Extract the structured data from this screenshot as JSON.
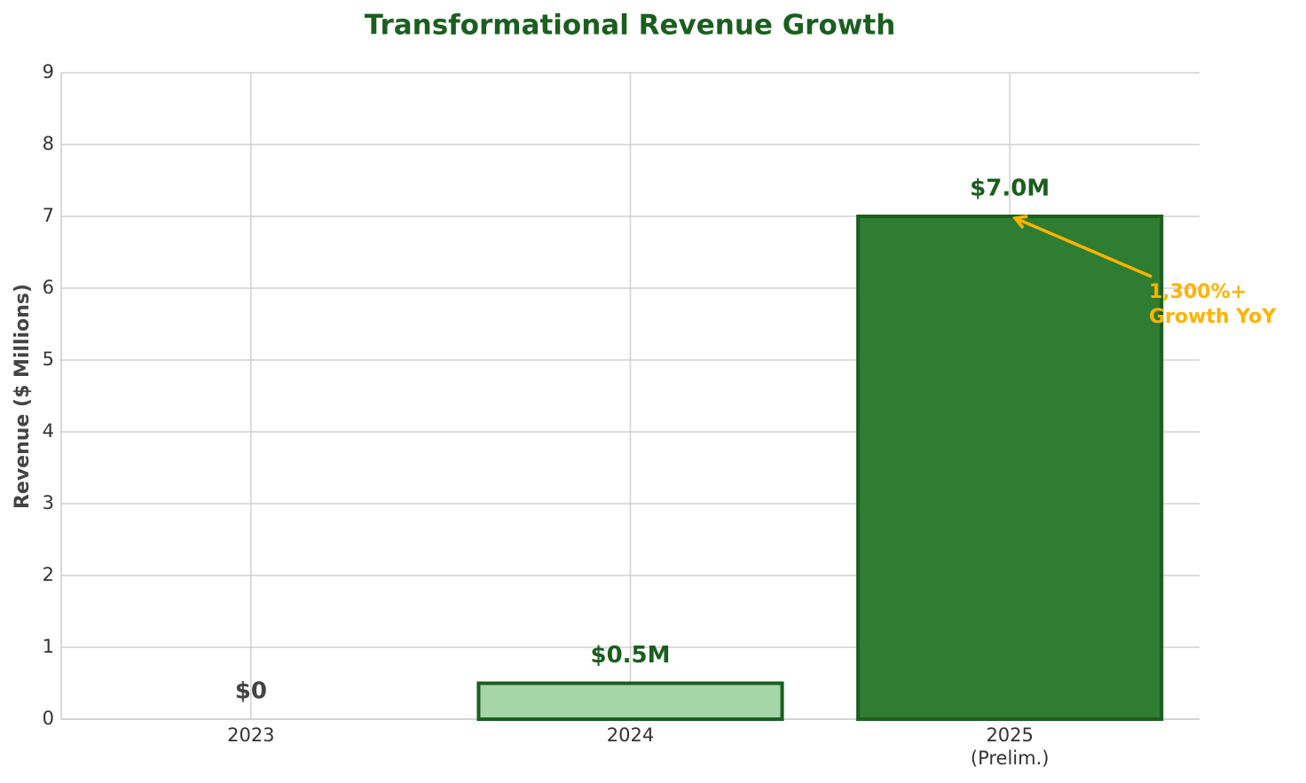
{
  "chart_data": {
    "type": "bar",
    "title": "Transformational Revenue Growth",
    "y_label": "Revenue ($ Millions)",
    "categories": [
      "2023",
      "2024",
      "2025\n(Prelim.)"
    ],
    "values": [
      0,
      0.5,
      7.0
    ],
    "value_labels": [
      "$0",
      "$0.5M",
      "$7.0M"
    ],
    "colors": [
      "#a5d6a7",
      "#a5d6a7",
      "#2e7d32"
    ],
    "edge_color": "#1b5e20",
    "value_label_colors": [
      "#444444",
      "#1b5e20",
      "#1b5e20"
    ],
    "annotation": {
      "text": "1,300%+\nGrowth YoY",
      "color": "#ffb300"
    },
    "ylim": [
      0,
      9
    ],
    "yticks": [
      0,
      1,
      2,
      3,
      4,
      5,
      6,
      7,
      8,
      9
    ],
    "grid": true
  }
}
